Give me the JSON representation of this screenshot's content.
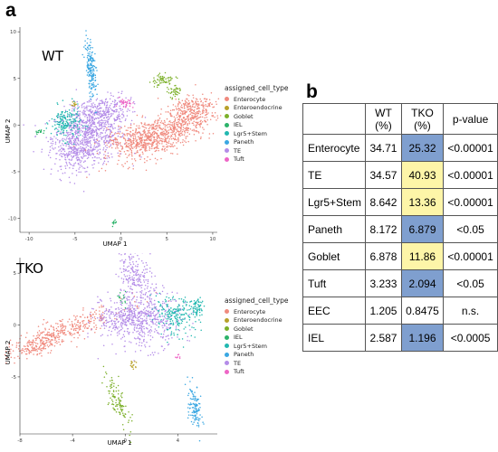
{
  "panel_a_label": "a",
  "panel_b_label": "b",
  "colors": {
    "Enterocyte": "#f08a7e",
    "Enteroendocrine": "#b8a12a",
    "Goblet": "#7cb02a",
    "IEL": "#2cb36a",
    "Lgr5+Stem": "#22b8b0",
    "Paneth": "#3aa7e2",
    "TE": "#b48ce8",
    "Tuft": "#ee66c6",
    "tko_lower": "#7f9fcf",
    "tko_higher": "#fdf5a8"
  },
  "chart_data": [
    {
      "type": "scatter",
      "title": "WT",
      "xlabel": "UMAP 1",
      "ylabel": "UMAP 2",
      "xlim": [
        -11,
        10.5
      ],
      "ylim": [
        -11.5,
        10.5
      ],
      "x_ticks": [
        -10,
        -5,
        0,
        5,
        10
      ],
      "y_ticks": [
        10,
        5,
        0,
        -5,
        -10
      ],
      "grid": false,
      "legend_title": "assigned_cell_type",
      "legend_entries": [
        "Enterocyte",
        "Enteroendocrine",
        "Goblet",
        "IEL",
        "Lgr5+Stem",
        "Paneth",
        "TE",
        "Tuft"
      ],
      "legend_position": "right"
    },
    {
      "type": "scatter",
      "title": "TKO",
      "xlabel": "UMAP 1",
      "ylabel": "UMAP 2",
      "xlim": [
        -8,
        7
      ],
      "ylim": [
        -10.5,
        6.5
      ],
      "x_ticks": [
        -8,
        -4,
        0,
        4
      ],
      "y_ticks": [
        5,
        0,
        -5
      ],
      "grid": false,
      "legend_title": "assigned_cell_type",
      "legend_entries": [
        "Enterocyte",
        "Enteroendocrine",
        "Goblet",
        "IEL",
        "Lgr5+Stem",
        "Paneth",
        "TE",
        "Tuft"
      ],
      "legend_position": "right"
    },
    {
      "type": "table",
      "headers": [
        "",
        "WT (%)",
        "TKO (%)",
        "p-value"
      ],
      "rows": [
        {
          "label": "Enterocyte",
          "wt": "34.71",
          "tko": "25.32",
          "p": "<0.00001",
          "shade": "blue"
        },
        {
          "label": "TE",
          "wt": "34.57",
          "tko": "40.93",
          "p": "<0.00001",
          "shade": "yellow"
        },
        {
          "label": "Lgr5+Stem",
          "wt": "8.642",
          "tko": "13.36",
          "p": "<0.00001",
          "shade": "yellow"
        },
        {
          "label": "Paneth",
          "wt": "8.172",
          "tko": "6.879",
          "p": "<0.05",
          "shade": "blue"
        },
        {
          "label": "Goblet",
          "wt": "6.878",
          "tko": "11.86",
          "p": "<0.00001",
          "shade": "yellow"
        },
        {
          "label": "Tuft",
          "wt": "3.233",
          "tko": "2.094",
          "p": "<0.05",
          "shade": "blue"
        },
        {
          "label": "EEC",
          "wt": "1.205",
          "tko": "0.8475",
          "p": "n.s.",
          "shade": "none"
        },
        {
          "label": "IEL",
          "wt": "2.587",
          "tko": "1.196",
          "p": "<0.0005",
          "shade": "blue"
        }
      ]
    }
  ]
}
